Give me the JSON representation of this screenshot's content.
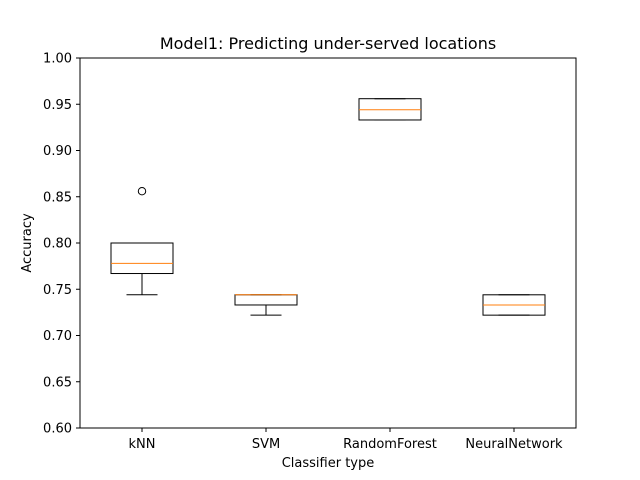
{
  "chart_data": {
    "type": "boxplot",
    "title": "Model1: Predicting under-served locations",
    "xlabel": "Classifier type",
    "ylabel": "Accuracy",
    "ylim": [
      0.6,
      1.0
    ],
    "yticks": [
      "0.60",
      "0.65",
      "0.70",
      "0.75",
      "0.80",
      "0.85",
      "0.90",
      "0.95",
      "1.00"
    ],
    "grid": false,
    "colors": {
      "box": "#000000",
      "median": "#ff7f0e",
      "background": "#ffffff"
    },
    "categories": [
      "kNN",
      "SVM",
      "RandomForest",
      "NeuralNetwork"
    ],
    "boxes": [
      {
        "whislo": 0.744,
        "q1": 0.767,
        "med": 0.778,
        "q3": 0.8,
        "whishi": 0.8,
        "fliers": [
          0.856
        ]
      },
      {
        "whislo": 0.722,
        "q1": 0.733,
        "med": 0.744,
        "q3": 0.744,
        "whishi": 0.744,
        "fliers": []
      },
      {
        "whislo": 0.933,
        "q1": 0.933,
        "med": 0.944,
        "q3": 0.956,
        "whishi": 0.956,
        "fliers": []
      },
      {
        "whislo": 0.722,
        "q1": 0.722,
        "med": 0.733,
        "q3": 0.744,
        "whishi": 0.744,
        "fliers": []
      }
    ]
  }
}
